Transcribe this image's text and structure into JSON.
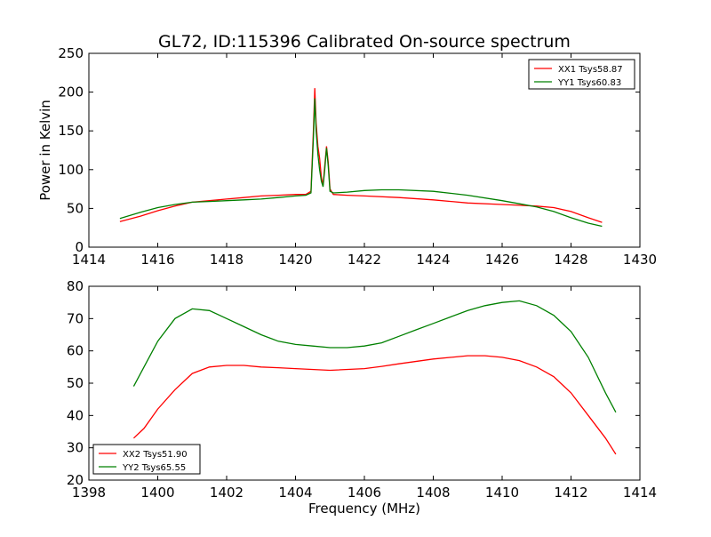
{
  "title": "GL72, ID:115396 Calibrated On-source spectrum",
  "colors": {
    "red": "#ff0000",
    "green": "#008000"
  },
  "chart_data": [
    {
      "type": "line",
      "ylabel": "Power in Kelvin",
      "xlabel": "",
      "xlim": [
        1414,
        1430
      ],
      "ylim": [
        0,
        250
      ],
      "xticks": [
        "1414",
        "1416",
        "1418",
        "1420",
        "1422",
        "1424",
        "1426",
        "1428",
        "1430"
      ],
      "yticks": [
        "0",
        "50",
        "100",
        "150",
        "200",
        "250"
      ],
      "legend_position": "top-right",
      "series": [
        {
          "name": "XX1 Tsys58.87",
          "color": "#ff0000",
          "points": [
            [
              1414.9,
              33
            ],
            [
              1415.5,
              40
            ],
            [
              1416,
              47
            ],
            [
              1416.5,
              53
            ],
            [
              1417,
              58
            ],
            [
              1417.5,
              60
            ],
            [
              1418,
              62
            ],
            [
              1418.5,
              64
            ],
            [
              1419,
              66
            ],
            [
              1419.5,
              67
            ],
            [
              1420,
              68
            ],
            [
              1420.3,
              68
            ],
            [
              1420.45,
              72
            ],
            [
              1420.52,
              150
            ],
            [
              1420.56,
              205
            ],
            [
              1420.6,
              160
            ],
            [
              1420.65,
              130
            ],
            [
              1420.7,
              115
            ],
            [
              1420.75,
              90
            ],
            [
              1420.8,
              80
            ],
            [
              1420.85,
              105
            ],
            [
              1420.9,
              130
            ],
            [
              1420.95,
              110
            ],
            [
              1421.0,
              75
            ],
            [
              1421.1,
              68
            ],
            [
              1421.5,
              67
            ],
            [
              1422,
              66
            ],
            [
              1423,
              64
            ],
            [
              1424,
              61
            ],
            [
              1425,
              57
            ],
            [
              1426,
              55
            ],
            [
              1426.5,
              54
            ],
            [
              1427,
              53
            ],
            [
              1427.5,
              51
            ],
            [
              1428,
              46
            ],
            [
              1428.5,
              38
            ],
            [
              1428.9,
              32
            ]
          ]
        },
        {
          "name": "YY1 Tsys60.83",
          "color": "#008000",
          "points": [
            [
              1414.9,
              37
            ],
            [
              1415.5,
              45
            ],
            [
              1416,
              51
            ],
            [
              1416.5,
              55
            ],
            [
              1417,
              58
            ],
            [
              1417.5,
              59
            ],
            [
              1418,
              60
            ],
            [
              1418.5,
              61
            ],
            [
              1419,
              62
            ],
            [
              1419.5,
              64
            ],
            [
              1420,
              66
            ],
            [
              1420.3,
              67
            ],
            [
              1420.45,
              70
            ],
            [
              1420.52,
              140
            ],
            [
              1420.56,
              192
            ],
            [
              1420.6,
              150
            ],
            [
              1420.65,
              120
            ],
            [
              1420.7,
              100
            ],
            [
              1420.75,
              85
            ],
            [
              1420.8,
              78
            ],
            [
              1420.85,
              100
            ],
            [
              1420.9,
              128
            ],
            [
              1420.95,
              105
            ],
            [
              1421.0,
              72
            ],
            [
              1421.1,
              70
            ],
            [
              1421.5,
              71
            ],
            [
              1422,
              73
            ],
            [
              1422.5,
              74
            ],
            [
              1423,
              74
            ],
            [
              1424,
              72
            ],
            [
              1425,
              67
            ],
            [
              1426,
              60
            ],
            [
              1426.5,
              56
            ],
            [
              1427,
              52
            ],
            [
              1427.5,
              46
            ],
            [
              1428,
              38
            ],
            [
              1428.5,
              31
            ],
            [
              1428.9,
              27
            ]
          ]
        }
      ]
    },
    {
      "type": "line",
      "ylabel": "",
      "xlabel": "Frequency (MHz)",
      "xlim": [
        1398,
        1414
      ],
      "ylim": [
        20,
        80
      ],
      "xticks": [
        "1398",
        "1400",
        "1402",
        "1404",
        "1406",
        "1408",
        "1410",
        "1412",
        "1414"
      ],
      "yticks": [
        "20",
        "30",
        "40",
        "50",
        "60",
        "70",
        "80"
      ],
      "legend_position": "bottom-left",
      "series": [
        {
          "name": "XX2 Tsys51.90",
          "color": "#ff0000",
          "points": [
            [
              1399.3,
              33
            ],
            [
              1399.6,
              36
            ],
            [
              1400,
              42
            ],
            [
              1400.5,
              48
            ],
            [
              1401,
              53
            ],
            [
              1401.5,
              55
            ],
            [
              1402,
              55.5
            ],
            [
              1402.5,
              55.5
            ],
            [
              1403,
              55
            ],
            [
              1403.5,
              54.8
            ],
            [
              1404,
              54.5
            ],
            [
              1405,
              54
            ],
            [
              1406,
              54.5
            ],
            [
              1406.5,
              55.2
            ],
            [
              1407,
              56
            ],
            [
              1408,
              57.5
            ],
            [
              1409,
              58.5
            ],
            [
              1409.5,
              58.5
            ],
            [
              1410,
              58
            ],
            [
              1410.5,
              57
            ],
            [
              1411,
              55
            ],
            [
              1411.5,
              52
            ],
            [
              1412,
              47
            ],
            [
              1412.5,
              40
            ],
            [
              1413,
              33
            ],
            [
              1413.3,
              28
            ]
          ]
        },
        {
          "name": "YY2 Tsys65.55",
          "color": "#008000",
          "points": [
            [
              1399.3,
              49
            ],
            [
              1399.6,
              55
            ],
            [
              1400,
              63
            ],
            [
              1400.5,
              70
            ],
            [
              1401,
              73
            ],
            [
              1401.5,
              72.5
            ],
            [
              1402,
              70
            ],
            [
              1402.5,
              67.5
            ],
            [
              1403,
              65
            ],
            [
              1403.5,
              63
            ],
            [
              1404,
              62
            ],
            [
              1404.5,
              61.5
            ],
            [
              1405,
              61
            ],
            [
              1405.5,
              61
            ],
            [
              1406,
              61.5
            ],
            [
              1406.5,
              62.5
            ],
            [
              1407,
              64.5
            ],
            [
              1407.5,
              66.5
            ],
            [
              1408,
              68.5
            ],
            [
              1408.5,
              70.5
            ],
            [
              1409,
              72.5
            ],
            [
              1409.5,
              74
            ],
            [
              1410,
              75
            ],
            [
              1410.5,
              75.5
            ],
            [
              1411,
              74
            ],
            [
              1411.5,
              71
            ],
            [
              1412,
              66
            ],
            [
              1412.5,
              58
            ],
            [
              1413,
              47
            ],
            [
              1413.3,
              41
            ]
          ]
        }
      ]
    }
  ]
}
